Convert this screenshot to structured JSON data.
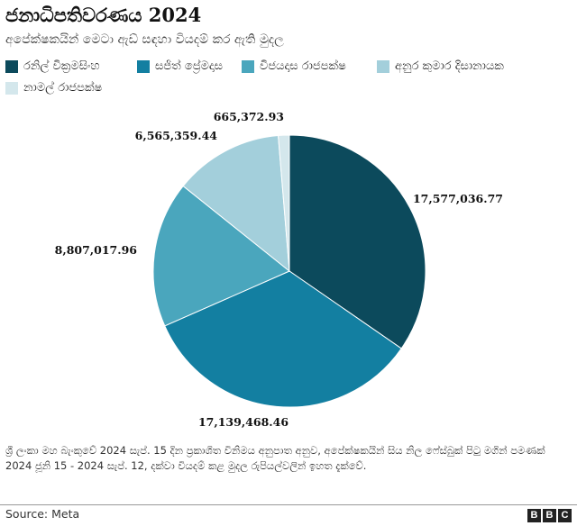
{
  "chart_data": {
    "type": "pie",
    "title": "ජනාධිපතිවරණය 2024",
    "subtitle": "අපේක්ෂකයින් මෙටා ඇඩ් සඳහා වියදම් කර ඇති මුදල",
    "legend_placement": "top",
    "slices": [
      {
        "name": "රනිල් වික්‍රමසිංහ",
        "value": 17577036.77,
        "label": "17,577,036.77",
        "color": "#0c4a5c"
      },
      {
        "name": "සජිත් ප්‍රේමදාස",
        "value": 17139468.46,
        "label": "17,139,468.46",
        "color": "#137fa1"
      },
      {
        "name": "විජයදාස රාජපක්ෂ",
        "value": 8807017.96,
        "label": "8,807,017.96",
        "color": "#4aa6bd"
      },
      {
        "name": "අනුර කුමාර දිසානායක",
        "value": 6565359.44,
        "label": "6,565,359.44",
        "color": "#a3cfdb"
      },
      {
        "name": "නාමල් රාජපක්ෂ",
        "value": 665372.93,
        "label": "665,372.93",
        "color": "#d4e7ec"
      }
    ]
  },
  "footnote": "ශ්‍රී ලංකා මහ බැංකුවේ 2024 සැප්. 15 දින ප්‍රකාශිත විනිමය අනුපාත අනුව, අපේක්ෂකයින් සිය නිල ෆේස්බුක් පිටු මගින් පමණක් 2024 ජූනි 15 - 2024 සැප්. 12, දක්වා වියදම් කළ මුදල රුපියල්වලින් ඉහත දැක්වේ.",
  "source": "Source: Meta",
  "logo": {
    "letters": [
      "B",
      "B",
      "C"
    ]
  }
}
